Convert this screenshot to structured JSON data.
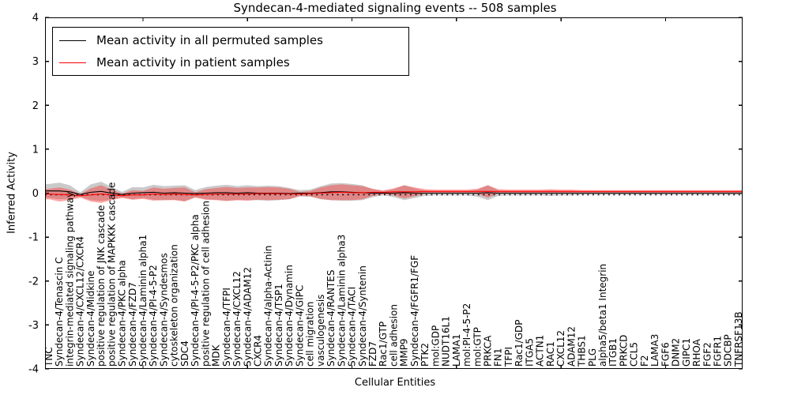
{
  "chart_data": {
    "type": "line",
    "title": "Syndecan-4-mediated signaling events -- 508 samples",
    "xlabel": "Cellular Entities",
    "ylabel": "Inferred Activity",
    "ylim": [
      -4,
      4
    ],
    "yticks": [
      4,
      3,
      2,
      1,
      0,
      -1,
      -2,
      -3,
      -4
    ],
    "x_major_tick_indices": [
      9,
      19,
      29,
      39,
      49,
      59
    ],
    "grid": false,
    "zero_line_style": "dotted",
    "legend_position": "upper left",
    "legend": [
      "Mean activity in all permuted samples",
      "Mean activity in patient samples"
    ],
    "colors": {
      "permuted_line": "#000000",
      "patient_line": "#ff0000",
      "permuted_band": "#8a8a8a",
      "patient_band": "#ff2a2a",
      "axis": "#000000",
      "background": "#ffffff"
    },
    "categories": [
      "TNC",
      "Syndecan-4/Tenascin C",
      "integrin-mediated signaling pathway",
      "Syndecan-4/CXCL12/CXCR4",
      "Syndecan-4/Midkine",
      "positive regulation of JNK cascade",
      "positive regulation of MAPKKK cascade",
      "Syndecan-4/PKC alpha",
      "Syndecan-4/FZD7",
      "Syndecan-4/Laminin alpha1",
      "Syndecan-4/PI-4-5-P2",
      "Syndecan-4/Syndesmos",
      "cytoskeleton organization",
      "SDC4",
      "Syndecan-4/PI-4-5-P2/PKC alpha",
      "positive regulation of cell adhesion",
      "MDK",
      "Syndecan-4/TFPI",
      "Syndecan-4/CXCL12",
      "Syndecan-4/ADAM12",
      "CXCR4",
      "Syndecan-4/alpha-Actinin",
      "Syndecan-4/TSP1",
      "Syndecan-4/Dynamin",
      "Syndecan-4/GIPC",
      "cell migration",
      "vasculogenesis",
      "Syndecan-4/RANTES",
      "Syndecan-4/Laminin alpha3",
      "Syndecan-4/TACI",
      "Syndecan-4/Syntenin",
      "FZD7",
      "Rac1/GTP",
      "cell adhesion",
      "MMP9",
      "Syndecan-4/FGFR1/FGF",
      "PTK2",
      "mol:GDP",
      "NUDT16L1",
      "LAMA1",
      "mol:PI-4-5-P2",
      "mol:GTP",
      "PRKCA",
      "FN1",
      "TFPI",
      "Rac1/GDP",
      "ITGA5",
      "ACTN1",
      "RAC1",
      "CXCL12",
      "ADAM12",
      "THBS1",
      "PLG",
      "alpha5/beta1 Integrin",
      "ITGB1",
      "PRKCD",
      "CCL5",
      "F2",
      "LAMA3",
      "FGF6",
      "DNM2",
      "GIPC1",
      "RHOA",
      "FGF2",
      "FGFR1",
      "SDCBP",
      "TNFRSF13B"
    ],
    "series": [
      {
        "name": "Mean activity in all permuted samples",
        "color": "#000000",
        "values": [
          0.05,
          0.05,
          0.03,
          -0.03,
          0.02,
          0.04,
          0.0,
          -0.03,
          0.0,
          0.01,
          0.02,
          0.0,
          0.01,
          0.0,
          -0.01,
          0.0,
          0.01,
          0.01,
          0.0,
          0.01,
          0.0,
          0.0,
          0.0,
          -0.01,
          0.0,
          0.0,
          0.01,
          0.03,
          0.03,
          0.02,
          0.01,
          0.0,
          0.0,
          0.0,
          0.01,
          0.0,
          0.0,
          0.0,
          0.0,
          0.0,
          0.0,
          0.0,
          0.01,
          0.0,
          0.0,
          0.0,
          0.0,
          0.0,
          0.0,
          0.0,
          0.0,
          0.0,
          0.0,
          0.0,
          0.0,
          0.0,
          0.0,
          0.0,
          0.0,
          0.0,
          0.0,
          0.0,
          0.0,
          0.0,
          0.0,
          0.0,
          0.0
        ]
      },
      {
        "name": "Mean activity in patient samples",
        "color": "#ff0000",
        "values": [
          -0.02,
          -0.03,
          -0.04,
          -0.06,
          -0.04,
          -0.02,
          -0.04,
          -0.06,
          -0.04,
          -0.04,
          -0.02,
          -0.03,
          -0.02,
          -0.03,
          -0.04,
          -0.03,
          -0.02,
          -0.02,
          -0.02,
          -0.02,
          -0.01,
          -0.01,
          -0.01,
          -0.02,
          -0.02,
          -0.01,
          0.0,
          0.01,
          0.02,
          0.01,
          0.01,
          0.02,
          0.02,
          0.03,
          0.03,
          0.03,
          0.04,
          0.04,
          0.04,
          0.04,
          0.04,
          0.04,
          0.04,
          0.04,
          0.04,
          0.04,
          0.04,
          0.04,
          0.04,
          0.04,
          0.04,
          0.04,
          0.04,
          0.04,
          0.04,
          0.04,
          0.04,
          0.04,
          0.04,
          0.04,
          0.04,
          0.04,
          0.04,
          0.04,
          0.04,
          0.04,
          0.04
        ]
      }
    ],
    "bands": [
      {
        "name": "permuted-samples-spread",
        "color": "#8a8a8a",
        "opacity": 0.45,
        "halfwidths": [
          0.16,
          0.19,
          0.15,
          0.05,
          0.18,
          0.22,
          0.14,
          0.06,
          0.14,
          0.12,
          0.17,
          0.16,
          0.16,
          0.18,
          0.08,
          0.14,
          0.16,
          0.18,
          0.16,
          0.17,
          0.16,
          0.17,
          0.16,
          0.13,
          0.07,
          0.08,
          0.15,
          0.19,
          0.2,
          0.19,
          0.17,
          0.09,
          0.05,
          0.09,
          0.17,
          0.11,
          0.06,
          0.05,
          0.05,
          0.05,
          0.05,
          0.08,
          0.17,
          0.06,
          0.05,
          0.05,
          0.05,
          0.05,
          0.06,
          0.05,
          0.05,
          0.04,
          0.04,
          0.04,
          0.04,
          0.04,
          0.04,
          0.04,
          0.04,
          0.04,
          0.04,
          0.04,
          0.04,
          0.04,
          0.04,
          0.04,
          0.04
        ]
      },
      {
        "name": "patient-samples-spread",
        "color": "#ff2a2a",
        "opacity": 0.42,
        "halfwidths": [
          0.12,
          0.16,
          0.12,
          0.04,
          0.15,
          0.2,
          0.12,
          0.05,
          0.11,
          0.09,
          0.15,
          0.13,
          0.14,
          0.16,
          0.06,
          0.12,
          0.14,
          0.16,
          0.14,
          0.15,
          0.14,
          0.15,
          0.14,
          0.12,
          0.05,
          0.06,
          0.13,
          0.17,
          0.18,
          0.17,
          0.15,
          0.08,
          0.04,
          0.08,
          0.15,
          0.1,
          0.05,
          0.04,
          0.04,
          0.04,
          0.04,
          0.06,
          0.14,
          0.05,
          0.04,
          0.04,
          0.04,
          0.04,
          0.05,
          0.04,
          0.04,
          0.03,
          0.03,
          0.03,
          0.03,
          0.03,
          0.03,
          0.03,
          0.03,
          0.03,
          0.03,
          0.03,
          0.03,
          0.03,
          0.03,
          0.03,
          0.03
        ]
      }
    ]
  }
}
